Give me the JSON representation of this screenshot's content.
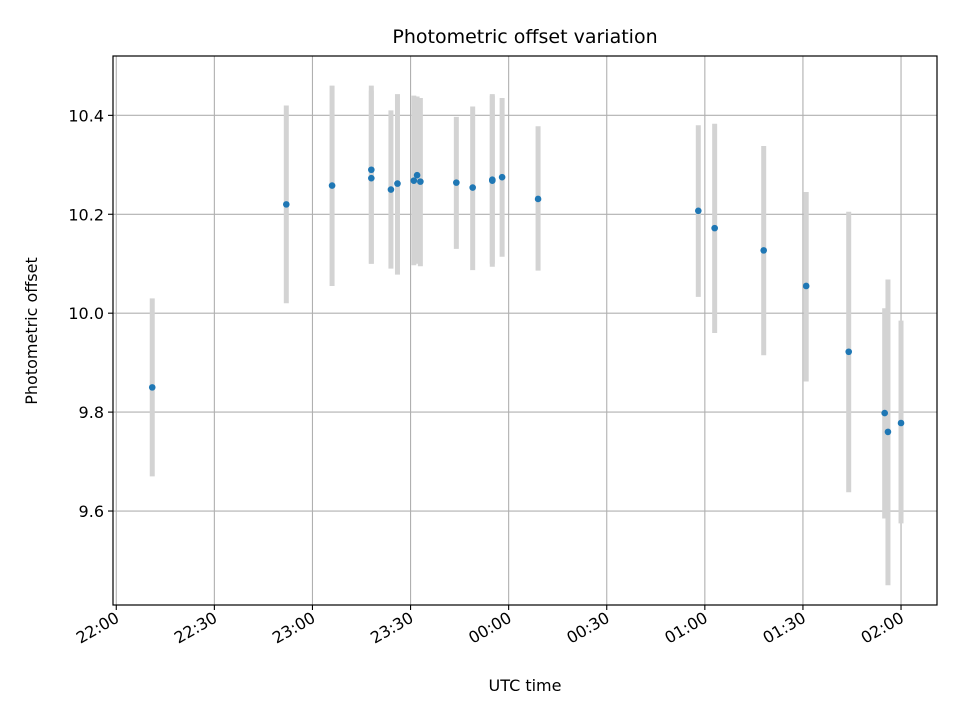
{
  "chart_data": {
    "type": "scatter",
    "title": "Photometric offset variation",
    "xlabel": "UTC time",
    "ylabel": "Photometric offset",
    "x_tick_labels": [
      "22:00",
      "22:30",
      "23:00",
      "23:30",
      "00:00",
      "00:30",
      "01:00",
      "01:30",
      "02:00"
    ],
    "x_tick_times": [
      "22:00",
      "22:30",
      "23:00",
      "23:30",
      "00:00",
      "00:30",
      "01:00",
      "01:30",
      "02:00"
    ],
    "y_tick_labels": [
      "9.6",
      "9.8",
      "10.0",
      "10.2",
      "10.4"
    ],
    "y_tick_values": [
      9.6,
      9.8,
      10.0,
      10.2,
      10.4
    ],
    "ylim": [
      9.41,
      10.52
    ],
    "xlim": [
      "21:59",
      "02:11"
    ],
    "grid": true,
    "marker_color": "#1f77b4",
    "errorbar_color": "#d3d3d3",
    "points": [
      {
        "time": "22:11",
        "y": 9.85,
        "ylow": 9.67,
        "yhigh": 10.03
      },
      {
        "time": "22:52",
        "y": 10.22,
        "ylow": 10.02,
        "yhigh": 10.42
      },
      {
        "time": "23:06",
        "y": 10.258,
        "ylow": 10.055,
        "yhigh": 10.46
      },
      {
        "time": "23:18",
        "y": 10.29,
        "ylow": 10.1,
        "yhigh": 10.46
      },
      {
        "time": "23:18",
        "y": 10.273,
        "ylow": 10.1,
        "yhigh": 10.45
      },
      {
        "time": "23:24",
        "y": 10.25,
        "ylow": 10.09,
        "yhigh": 10.41
      },
      {
        "time": "23:26",
        "y": 10.262,
        "ylow": 10.078,
        "yhigh": 10.443
      },
      {
        "time": "23:31",
        "y": 10.268,
        "ylow": 10.097,
        "yhigh": 10.44
      },
      {
        "time": "23:32",
        "y": 10.279,
        "ylow": 10.1,
        "yhigh": 10.438
      },
      {
        "time": "23:33",
        "y": 10.266,
        "ylow": 10.095,
        "yhigh": 10.435
      },
      {
        "time": "23:44",
        "y": 10.264,
        "ylow": 10.13,
        "yhigh": 10.397
      },
      {
        "time": "23:49",
        "y": 10.254,
        "ylow": 10.087,
        "yhigh": 10.418
      },
      {
        "time": "23:55",
        "y": 10.268,
        "ylow": 10.094,
        "yhigh": 10.443
      },
      {
        "time": "23:55",
        "y": 10.27,
        "ylow": 10.1,
        "yhigh": 10.44
      },
      {
        "time": "23:58",
        "y": 10.275,
        "ylow": 10.114,
        "yhigh": 10.435
      },
      {
        "time": "00:09",
        "y": 10.231,
        "ylow": 10.086,
        "yhigh": 10.378
      },
      {
        "time": "00:58",
        "y": 10.207,
        "ylow": 10.033,
        "yhigh": 10.38
      },
      {
        "time": "01:03",
        "y": 10.172,
        "ylow": 9.96,
        "yhigh": 10.383
      },
      {
        "time": "01:18",
        "y": 10.127,
        "ylow": 9.915,
        "yhigh": 10.338
      },
      {
        "time": "01:31",
        "y": 10.055,
        "ylow": 9.862,
        "yhigh": 10.245
      },
      {
        "time": "01:44",
        "y": 9.922,
        "ylow": 9.638,
        "yhigh": 10.205
      },
      {
        "time": "01:55",
        "y": 9.798,
        "ylow": 9.585,
        "yhigh": 10.01
      },
      {
        "time": "01:56",
        "y": 9.76,
        "ylow": 9.45,
        "yhigh": 10.068
      },
      {
        "time": "02:00",
        "y": 9.778,
        "ylow": 9.575,
        "yhigh": 9.985
      }
    ]
  }
}
